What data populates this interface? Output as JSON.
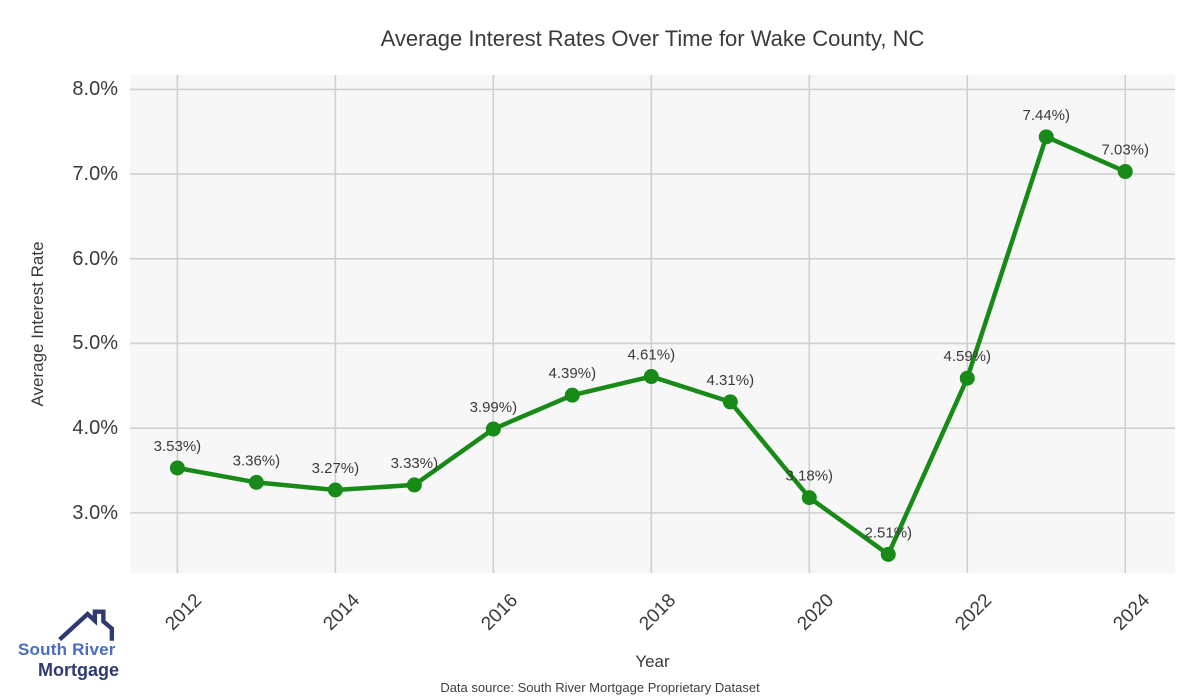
{
  "chart_data": {
    "type": "line",
    "title": "Average Interest Rates Over Time for Wake County, NC",
    "xlabel": "Year",
    "ylabel": "Average Interest Rate",
    "x": [
      2012,
      2013,
      2014,
      2015,
      2016,
      2017,
      2018,
      2019,
      2020,
      2021,
      2022,
      2023,
      2024
    ],
    "values": [
      3.53,
      3.36,
      3.27,
      3.33,
      3.99,
      4.39,
      4.61,
      4.31,
      3.18,
      2.51,
      4.59,
      7.44,
      7.03
    ],
    "point_labels": [
      "3.53%)",
      "3.36%)",
      "3.27%)",
      "3.33%)",
      "3.99%)",
      "4.39%)",
      "4.61%)",
      "4.31%)",
      "3.18%)",
      "2.51%)",
      "4.59%)",
      "7.44%)",
      "7.03%)"
    ],
    "x_tick_values": [
      2012,
      2014,
      2016,
      2018,
      2020,
      2022,
      2024
    ],
    "x_tick_labels": [
      "2012",
      "2014",
      "2016",
      "2018",
      "2020",
      "2022",
      "2024"
    ],
    "y_tick_values": [
      8,
      7,
      6,
      5,
      4,
      3
    ],
    "y_tick_labels": [
      "8.0%",
      "7.0%",
      "6.0%",
      "5.0%",
      "4.0%",
      "3.0%"
    ],
    "xlim": [
      2011.4,
      2024.63
    ],
    "ylim": [
      2.29,
      8.17
    ],
    "grid": true,
    "legend": "none",
    "line_color": "#178a17",
    "marker": "circle",
    "plot_bg_color": "#f7f7f8",
    "grid_color": "#d0d0d0"
  },
  "footer": {
    "source_note": "Data source: South River Mortgage Proprietary Dataset"
  },
  "logo": {
    "line1": "South River",
    "line2": "Mortgage",
    "roof_color": "#2e3a70"
  }
}
